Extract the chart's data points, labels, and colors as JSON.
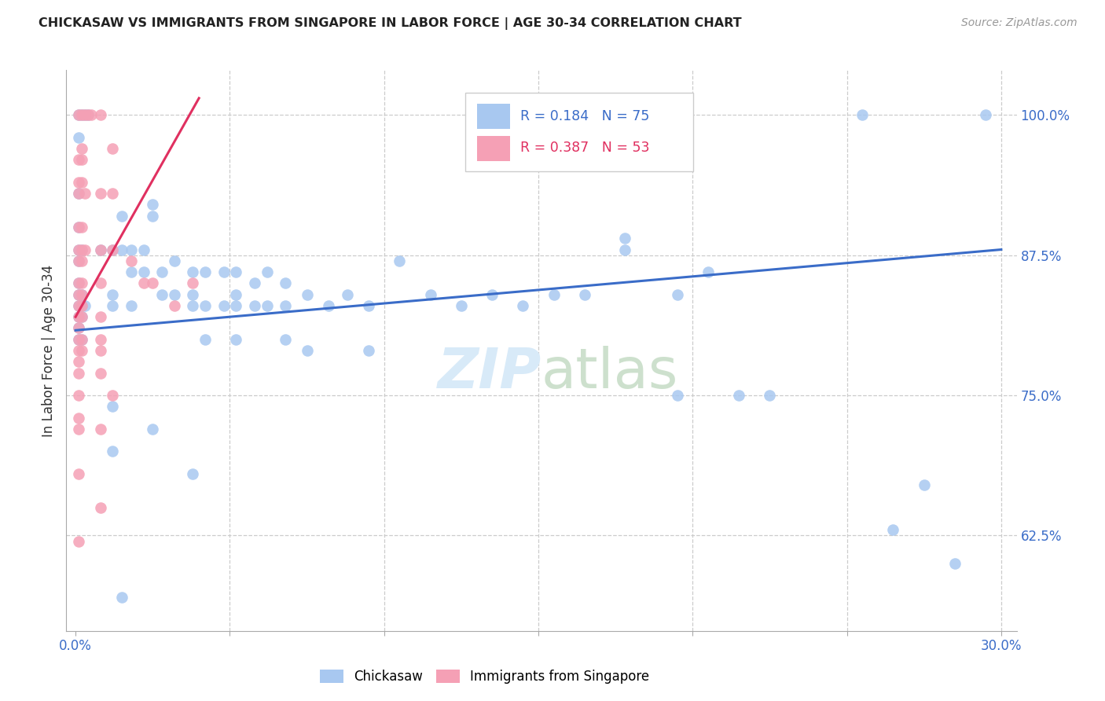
{
  "title": "CHICKASAW VS IMMIGRANTS FROM SINGAPORE IN LABOR FORCE | AGE 30-34 CORRELATION CHART",
  "source": "Source: ZipAtlas.com",
  "ylabel": "In Labor Force | Age 30-34",
  "R_blue": "0.184",
  "N_blue": "75",
  "R_pink": "0.387",
  "N_pink": "53",
  "blue_color": "#a8c8f0",
  "pink_color": "#f5a0b5",
  "blue_line_color": "#3a6cc8",
  "pink_line_color": "#e03060",
  "watermark_color": "#d8eaf8",
  "xlim": [
    -0.003,
    0.305
  ],
  "ylim": [
    0.54,
    1.04
  ],
  "x_ticks": [
    0.0,
    0.05,
    0.1,
    0.15,
    0.2,
    0.25,
    0.3
  ],
  "y_ticks": [
    0.625,
    0.75,
    0.875,
    1.0
  ],
  "y_tick_labels": [
    "62.5%",
    "75.0%",
    "87.5%",
    "100.0%"
  ],
  "x_tick_labels_show": [
    "0.0%",
    "30.0%"
  ],
  "blue_trend": [
    0.0,
    0.808,
    0.3,
    0.88
  ],
  "pink_trend": [
    0.0,
    0.82,
    0.04,
    1.015
  ],
  "blue_scatter": [
    [
      0.001,
      1.0
    ],
    [
      0.002,
      1.0
    ],
    [
      0.003,
      1.0
    ],
    [
      0.004,
      1.0
    ],
    [
      0.001,
      0.98
    ],
    [
      0.001,
      0.93
    ],
    [
      0.001,
      0.9
    ],
    [
      0.001,
      0.88
    ],
    [
      0.002,
      0.88
    ],
    [
      0.001,
      0.87
    ],
    [
      0.001,
      0.85
    ],
    [
      0.001,
      0.84
    ],
    [
      0.002,
      0.84
    ],
    [
      0.001,
      0.83
    ],
    [
      0.002,
      0.83
    ],
    [
      0.003,
      0.83
    ],
    [
      0.001,
      0.82
    ],
    [
      0.002,
      0.82
    ],
    [
      0.001,
      0.81
    ],
    [
      0.001,
      0.8
    ],
    [
      0.002,
      0.8
    ],
    [
      0.008,
      0.88
    ],
    [
      0.012,
      0.88
    ],
    [
      0.012,
      0.84
    ],
    [
      0.012,
      0.83
    ],
    [
      0.015,
      0.91
    ],
    [
      0.015,
      0.88
    ],
    [
      0.018,
      0.88
    ],
    [
      0.018,
      0.86
    ],
    [
      0.018,
      0.83
    ],
    [
      0.022,
      0.88
    ],
    [
      0.022,
      0.86
    ],
    [
      0.025,
      0.92
    ],
    [
      0.025,
      0.91
    ],
    [
      0.028,
      0.86
    ],
    [
      0.028,
      0.84
    ],
    [
      0.032,
      0.87
    ],
    [
      0.032,
      0.84
    ],
    [
      0.038,
      0.86
    ],
    [
      0.038,
      0.84
    ],
    [
      0.038,
      0.83
    ],
    [
      0.042,
      0.86
    ],
    [
      0.042,
      0.83
    ],
    [
      0.042,
      0.8
    ],
    [
      0.048,
      0.86
    ],
    [
      0.048,
      0.83
    ],
    [
      0.052,
      0.86
    ],
    [
      0.052,
      0.84
    ],
    [
      0.052,
      0.83
    ],
    [
      0.052,
      0.8
    ],
    [
      0.058,
      0.85
    ],
    [
      0.058,
      0.83
    ],
    [
      0.062,
      0.86
    ],
    [
      0.062,
      0.83
    ],
    [
      0.068,
      0.85
    ],
    [
      0.068,
      0.83
    ],
    [
      0.068,
      0.8
    ],
    [
      0.075,
      0.84
    ],
    [
      0.075,
      0.79
    ],
    [
      0.082,
      0.83
    ],
    [
      0.088,
      0.84
    ],
    [
      0.095,
      0.83
    ],
    [
      0.095,
      0.79
    ],
    [
      0.105,
      0.87
    ],
    [
      0.115,
      0.84
    ],
    [
      0.125,
      0.83
    ],
    [
      0.135,
      0.84
    ],
    [
      0.145,
      0.83
    ],
    [
      0.155,
      0.84
    ],
    [
      0.165,
      0.84
    ],
    [
      0.178,
      0.89
    ],
    [
      0.178,
      0.88
    ],
    [
      0.195,
      0.84
    ],
    [
      0.205,
      0.86
    ],
    [
      0.215,
      0.75
    ],
    [
      0.225,
      0.75
    ],
    [
      0.012,
      0.74
    ],
    [
      0.012,
      0.7
    ],
    [
      0.025,
      0.72
    ],
    [
      0.038,
      0.68
    ],
    [
      0.015,
      0.57
    ],
    [
      0.255,
      1.0
    ],
    [
      0.295,
      1.0
    ],
    [
      0.195,
      0.75
    ],
    [
      0.275,
      0.67
    ],
    [
      0.265,
      0.63
    ],
    [
      0.285,
      0.6
    ]
  ],
  "pink_scatter": [
    [
      0.001,
      1.0
    ],
    [
      0.002,
      1.0
    ],
    [
      0.003,
      1.0
    ],
    [
      0.004,
      1.0
    ],
    [
      0.005,
      1.0
    ],
    [
      0.002,
      0.97
    ],
    [
      0.001,
      0.96
    ],
    [
      0.002,
      0.96
    ],
    [
      0.001,
      0.94
    ],
    [
      0.002,
      0.94
    ],
    [
      0.001,
      0.93
    ],
    [
      0.003,
      0.93
    ],
    [
      0.001,
      0.9
    ],
    [
      0.002,
      0.9
    ],
    [
      0.001,
      0.88
    ],
    [
      0.002,
      0.88
    ],
    [
      0.003,
      0.88
    ],
    [
      0.001,
      0.87
    ],
    [
      0.002,
      0.87
    ],
    [
      0.001,
      0.85
    ],
    [
      0.002,
      0.85
    ],
    [
      0.001,
      0.84
    ],
    [
      0.002,
      0.84
    ],
    [
      0.001,
      0.83
    ],
    [
      0.002,
      0.83
    ],
    [
      0.001,
      0.82
    ],
    [
      0.002,
      0.82
    ],
    [
      0.001,
      0.81
    ],
    [
      0.001,
      0.8
    ],
    [
      0.002,
      0.8
    ],
    [
      0.001,
      0.79
    ],
    [
      0.002,
      0.79
    ],
    [
      0.001,
      0.78
    ],
    [
      0.001,
      0.77
    ],
    [
      0.001,
      0.75
    ],
    [
      0.001,
      0.73
    ],
    [
      0.001,
      0.72
    ],
    [
      0.001,
      0.68
    ],
    [
      0.001,
      0.62
    ],
    [
      0.008,
      1.0
    ],
    [
      0.008,
      0.93
    ],
    [
      0.008,
      0.88
    ],
    [
      0.008,
      0.85
    ],
    [
      0.008,
      0.82
    ],
    [
      0.008,
      0.8
    ],
    [
      0.008,
      0.79
    ],
    [
      0.008,
      0.77
    ],
    [
      0.008,
      0.72
    ],
    [
      0.008,
      0.65
    ],
    [
      0.012,
      0.97
    ],
    [
      0.012,
      0.93
    ],
    [
      0.012,
      0.88
    ],
    [
      0.018,
      0.87
    ],
    [
      0.022,
      0.85
    ],
    [
      0.025,
      0.85
    ],
    [
      0.032,
      0.83
    ],
    [
      0.038,
      0.85
    ],
    [
      0.012,
      0.75
    ]
  ]
}
